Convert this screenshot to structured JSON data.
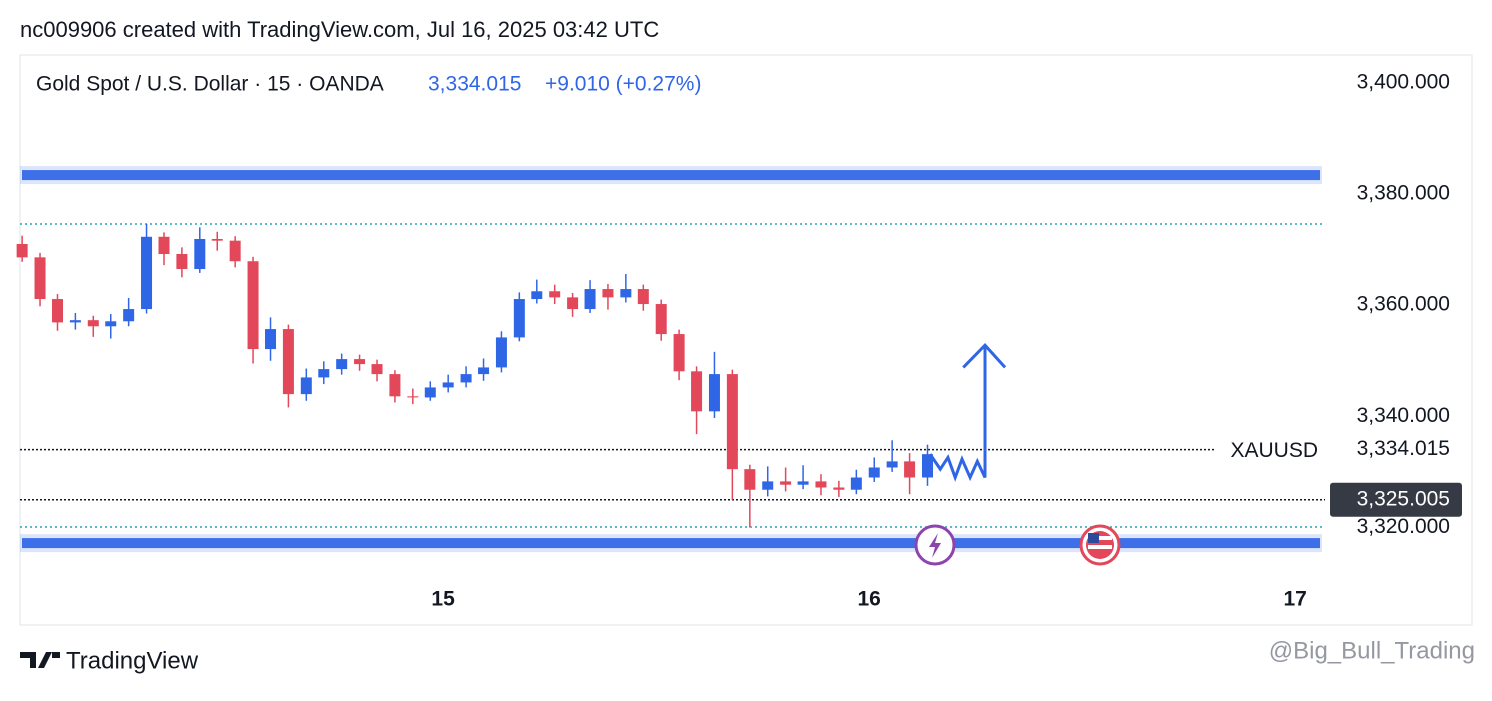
{
  "header": {
    "text": "nc009906 created with TradingView.com, Jul 16, 2025 03:42 UTC"
  },
  "footer": {
    "brand": "TradingView",
    "watermark": "@Big_Bull_Trading"
  },
  "chart_data": {
    "type": "candlestick",
    "legend": {
      "symbol": "Gold Spot / U.S. Dollar · 15 · OANDA",
      "price": "3,334.015",
      "change": "+9.010 (+0.27%)"
    },
    "x": [
      14.012,
      14.054,
      14.095,
      14.137,
      14.179,
      14.22,
      14.262,
      14.304,
      14.345,
      14.387,
      14.429,
      14.47,
      14.512,
      14.554,
      14.595,
      14.637,
      14.679,
      14.72,
      14.762,
      14.804,
      14.845,
      14.887,
      14.929,
      14.97,
      15.012,
      15.054,
      15.095,
      15.137,
      15.179,
      15.22,
      15.262,
      15.304,
      15.345,
      15.387,
      15.429,
      15.47,
      15.512,
      15.554,
      15.595,
      15.637,
      15.679,
      15.72,
      15.762,
      15.804,
      15.845,
      15.887,
      15.929,
      15.97,
      16.012,
      16.054,
      16.095,
      16.137
    ],
    "open": [
      3371.0,
      3368.6,
      3361.1,
      3356.9,
      3357.3,
      3356.2,
      3357.1,
      3359.3,
      3372.3,
      3369.2,
      3366.5,
      3371.9,
      3371.6,
      3367.9,
      3352.1,
      3355.7,
      3344.0,
      3347.0,
      3348.5,
      3350.3,
      3349.4,
      3347.6,
      3343.6,
      3343.4,
      3345.2,
      3346.1,
      3347.6,
      3348.8,
      3354.2,
      3361.1,
      3362.5,
      3361.4,
      3359.3,
      3362.9,
      3361.4,
      3362.9,
      3360.2,
      3354.8,
      3348.1,
      3340.9,
      3347.6,
      3330.5,
      3326.8,
      3328.3,
      3327.7,
      3328.3,
      3327.2,
      3326.8,
      3329.0,
      3330.8,
      3331.9,
      3329.0
    ],
    "high": [
      3372.5,
      3369.4,
      3362.0,
      3358.6,
      3358.1,
      3358.4,
      3361.3,
      3374.6,
      3373.1,
      3370.4,
      3374.0,
      3373.2,
      3372.4,
      3368.7,
      3357.8,
      3356.5,
      3348.6,
      3349.9,
      3351.3,
      3351.1,
      3350.2,
      3348.3,
      3345.0,
      3346.3,
      3347.5,
      3349.0,
      3350.4,
      3355.3,
      3362.3,
      3364.6,
      3363.7,
      3362.2,
      3364.5,
      3363.8,
      3365.6,
      3363.7,
      3361.0,
      3355.6,
      3349.0,
      3351.6,
      3348.4,
      3331.3,
      3331.0,
      3330.8,
      3331.2,
      3329.6,
      3328.4,
      3330.4,
      3332.6,
      3335.7,
      3333.4,
      3334.9
    ],
    "low": [
      3367.8,
      3359.8,
      3355.4,
      3355.6,
      3354.3,
      3354.0,
      3356.2,
      3358.5,
      3367.2,
      3365.0,
      3365.8,
      3369.8,
      3366.8,
      3349.5,
      3350.0,
      3341.6,
      3342.8,
      3345.8,
      3347.5,
      3348.2,
      3346.3,
      3342.5,
      3342.2,
      3342.8,
      3344.3,
      3345.2,
      3346.4,
      3347.9,
      3353.5,
      3360.3,
      3360.2,
      3357.9,
      3358.6,
      3359.2,
      3360.5,
      3359.0,
      3353.6,
      3346.5,
      3336.8,
      3339.7,
      3325.0,
      3320.0,
      3325.6,
      3326.5,
      3326.9,
      3325.8,
      3325.5,
      3326.0,
      3328.2,
      3330.0,
      3326.0,
      3327.5
    ],
    "close": [
      3368.6,
      3361.1,
      3356.9,
      3357.3,
      3356.2,
      3357.1,
      3359.3,
      3372.3,
      3369.2,
      3366.5,
      3371.9,
      3371.6,
      3367.9,
      3352.1,
      3355.7,
      3344.0,
      3347.0,
      3348.5,
      3350.3,
      3349.4,
      3347.6,
      3343.6,
      3343.4,
      3345.2,
      3346.1,
      3347.6,
      3348.8,
      3354.2,
      3361.1,
      3362.5,
      3361.4,
      3359.3,
      3362.9,
      3361.4,
      3362.9,
      3360.2,
      3354.8,
      3348.1,
      3340.9,
      3347.6,
      3330.5,
      3326.8,
      3328.3,
      3327.7,
      3328.3,
      3327.2,
      3326.8,
      3329.0,
      3330.8,
      3331.9,
      3329.0,
      3333.2
    ],
    "up_color": "#2f66e6",
    "down_color": "#e2475a",
    "xlim": [
      14.007,
      17.07
    ],
    "xticks": [
      15,
      16,
      17
    ],
    "ylim": [
      3312,
      3405
    ],
    "yticks": [
      {
        "value": 3400,
        "label": "3,400.000"
      },
      {
        "value": 3380,
        "label": "3,380.000"
      },
      {
        "value": 3360,
        "label": "3,360.000"
      },
      {
        "value": 3340,
        "label": "3,340.000"
      },
      {
        "value": 3320,
        "label": "3,320.000"
      }
    ],
    "grid": false,
    "levels": [
      {
        "value": 3383.4,
        "style": "band",
        "color": "#3d6fe8"
      },
      {
        "value": 3317.2,
        "style": "band",
        "color": "#3d6fe8"
      },
      {
        "value": 3374.6,
        "style": "dotted",
        "color": "#22a5b8"
      },
      {
        "value": 3320.1,
        "style": "dotted",
        "color": "#22a5b8"
      }
    ],
    "price_lines": [
      {
        "value": 3334.015,
        "label": "3,334.015",
        "name": "XAUUSD"
      },
      {
        "value": 3325.005,
        "label": "3,325.005"
      }
    ],
    "projection": {
      "color": "#2f66e6",
      "x": [
        16.143,
        16.167,
        16.185,
        16.202,
        16.218,
        16.237,
        16.254,
        16.272,
        16.272
      ],
      "y": [
        3333.2,
        3330.5,
        3332.6,
        3329.0,
        3332.3,
        3329.0,
        3331.9,
        3329.0,
        3352.8
      ],
      "head_x": [
        16.221,
        16.272,
        16.319
      ],
      "head_y": [
        3348.8,
        3352.8,
        3348.8
      ]
    }
  }
}
